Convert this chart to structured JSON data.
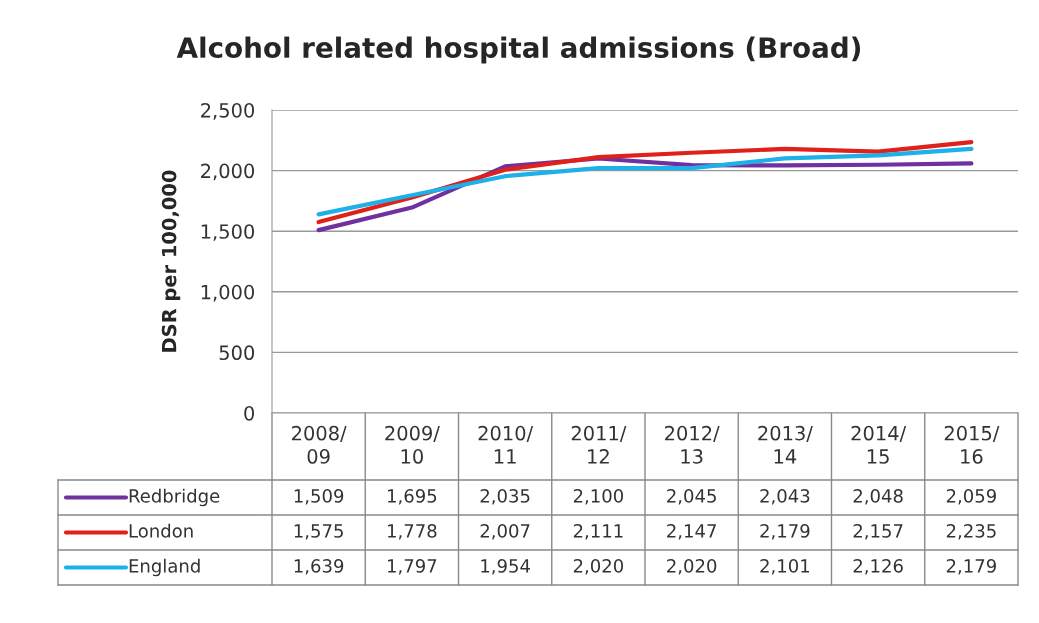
{
  "chart_data": {
    "type": "line",
    "title": "Alcohol related hospital admissions (Broad)",
    "ylabel": "DSR per 100,000",
    "categories": [
      "2008/09",
      "2009/10",
      "2010/11",
      "2011/12",
      "2012/13",
      "2013/14",
      "2014/15",
      "2015/16"
    ],
    "series": [
      {
        "name": "Redbridge",
        "color": "#7030a0",
        "values": [
          1509,
          1695,
          2035,
          2100,
          2045,
          2043,
          2048,
          2059
        ],
        "value_labels": [
          "1,509",
          "1,695",
          "2,035",
          "2,100",
          "2,045",
          "2,043",
          "2,048",
          "2,059"
        ]
      },
      {
        "name": "London",
        "color": "#e0201b",
        "values": [
          1575,
          1778,
          2007,
          2111,
          2147,
          2179,
          2157,
          2235
        ],
        "value_labels": [
          "1,575",
          "1,778",
          "2,007",
          "2,111",
          "2,147",
          "2,179",
          "2,157",
          "2,235"
        ]
      },
      {
        "name": "England",
        "color": "#1eb0e8",
        "values": [
          1639,
          1797,
          1954,
          2020,
          2020,
          2101,
          2126,
          2179
        ],
        "value_labels": [
          "1,639",
          "1,797",
          "1,954",
          "2,020",
          "2,020",
          "2,101",
          "2,126",
          "2,179"
        ]
      }
    ],
    "ylim": [
      0,
      2500
    ],
    "yticks": [
      {
        "value": 0,
        "label": "0"
      },
      {
        "value": 500,
        "label": "500"
      },
      {
        "value": 1000,
        "label": "1,000"
      },
      {
        "value": 1500,
        "label": "1,500"
      },
      {
        "value": 2000,
        "label": "2,000"
      },
      {
        "value": 2500,
        "label": "2,500"
      }
    ],
    "grid": "y",
    "legend": "bottom",
    "marker": "none",
    "line_style": "solid"
  }
}
